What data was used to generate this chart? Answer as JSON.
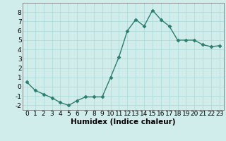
{
  "x": [
    0,
    1,
    2,
    3,
    4,
    5,
    6,
    7,
    8,
    9,
    10,
    11,
    12,
    13,
    14,
    15,
    16,
    17,
    18,
    19,
    20,
    21,
    22,
    23
  ],
  "y": [
    0.5,
    -0.4,
    -0.8,
    -1.2,
    -1.7,
    -2.0,
    -1.5,
    -1.1,
    -1.1,
    -1.1,
    1.0,
    3.2,
    6.0,
    7.2,
    6.5,
    8.2,
    7.2,
    6.5,
    5.0,
    5.0,
    5.0,
    4.5,
    4.3,
    4.4
  ],
  "line_color": "#2e7d6e",
  "marker_color": "#2e7d6e",
  "bg_color": "#d0eceb",
  "grid_color": "#a8d8d5",
  "xlabel": "Humidex (Indice chaleur)",
  "xlim": [
    -0.5,
    23.5
  ],
  "ylim": [
    -2.5,
    9.0
  ],
  "yticks": [
    -2,
    -1,
    0,
    1,
    2,
    3,
    4,
    5,
    6,
    7,
    8
  ],
  "xticks": [
    0,
    1,
    2,
    3,
    4,
    5,
    6,
    7,
    8,
    9,
    10,
    11,
    12,
    13,
    14,
    15,
    16,
    17,
    18,
    19,
    20,
    21,
    22,
    23
  ],
  "xlabel_fontsize": 7.5,
  "tick_fontsize": 6.5,
  "line_width": 1.0,
  "marker_size": 2.5
}
